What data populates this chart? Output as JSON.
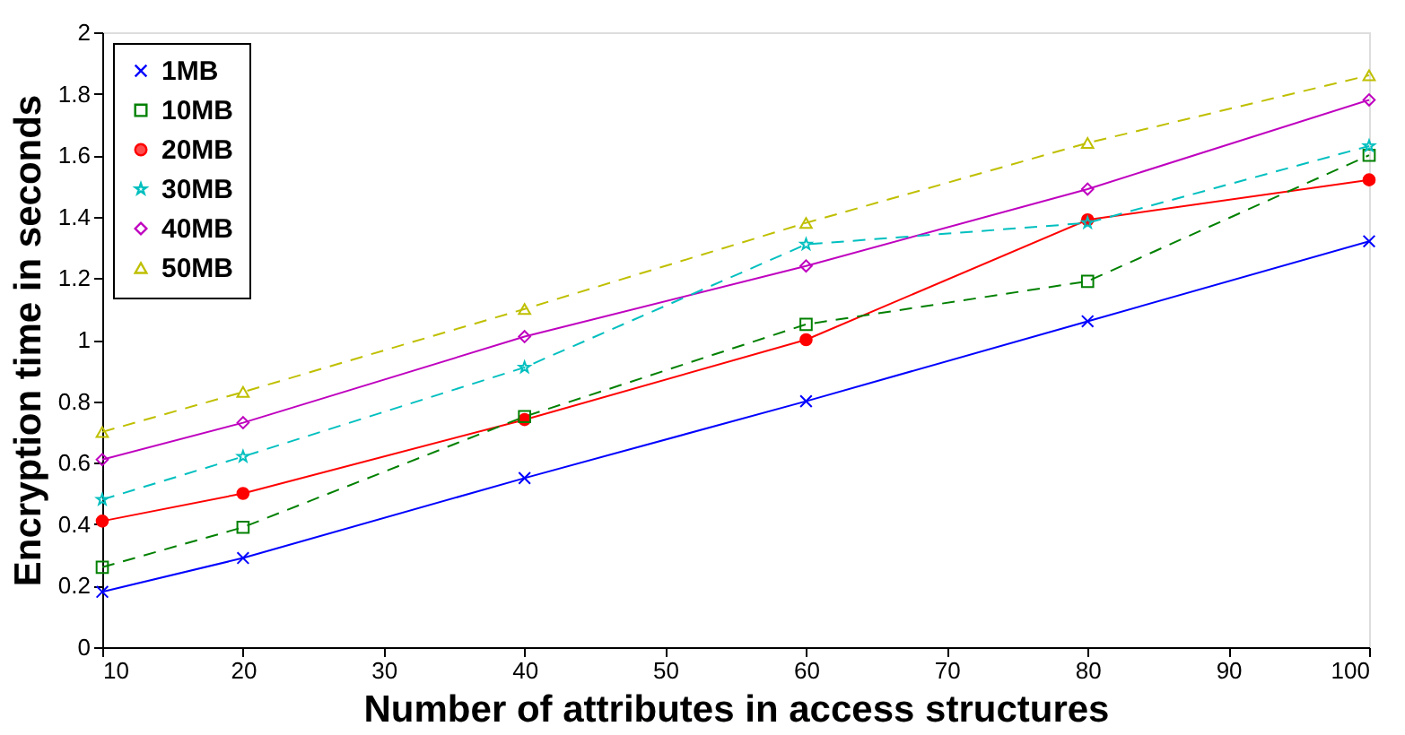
{
  "chart_data": {
    "type": "line",
    "xlabel": "Number of attributes in access structures",
    "ylabel": "Encryption time in seconds",
    "x": [
      10,
      20,
      40,
      60,
      80,
      100
    ],
    "series": [
      {
        "name": "1MB",
        "color": "#0000ff",
        "marker": "cross",
        "line_style": "solid",
        "values": [
          0.18,
          0.29,
          0.55,
          0.8,
          1.06,
          1.32
        ]
      },
      {
        "name": "10MB",
        "color": "#008000",
        "marker": "square",
        "line_style": "dashed",
        "values": [
          0.26,
          0.39,
          0.75,
          1.05,
          1.19,
          1.6
        ]
      },
      {
        "name": "20MB",
        "color": "#ff0000",
        "marker": "circle",
        "line_style": "solid",
        "values": [
          0.41,
          0.5,
          0.74,
          1.0,
          1.39,
          1.52
        ]
      },
      {
        "name": "30MB",
        "color": "#00bfbf",
        "marker": "star",
        "line_style": "dashed",
        "values": [
          0.48,
          0.62,
          0.91,
          1.31,
          1.38,
          1.63
        ]
      },
      {
        "name": "40MB",
        "color": "#bf00bf",
        "marker": "diamond",
        "line_style": "solid",
        "values": [
          0.61,
          0.73,
          1.01,
          1.24,
          1.49,
          1.78
        ]
      },
      {
        "name": "50MB",
        "color": "#bfbf00",
        "marker": "triangle",
        "line_style": "dashed",
        "values": [
          0.7,
          0.83,
          1.1,
          1.38,
          1.64,
          1.86
        ]
      }
    ],
    "xlim": [
      10,
      100
    ],
    "xticks": [
      10,
      20,
      30,
      40,
      50,
      60,
      70,
      80,
      90,
      100
    ],
    "ylim": [
      0,
      2
    ],
    "yticks": [
      0,
      0.2,
      0.4,
      0.6,
      0.8,
      1,
      1.2,
      1.4,
      1.6,
      1.8,
      2
    ],
    "grid": false,
    "legend": "top left"
  }
}
